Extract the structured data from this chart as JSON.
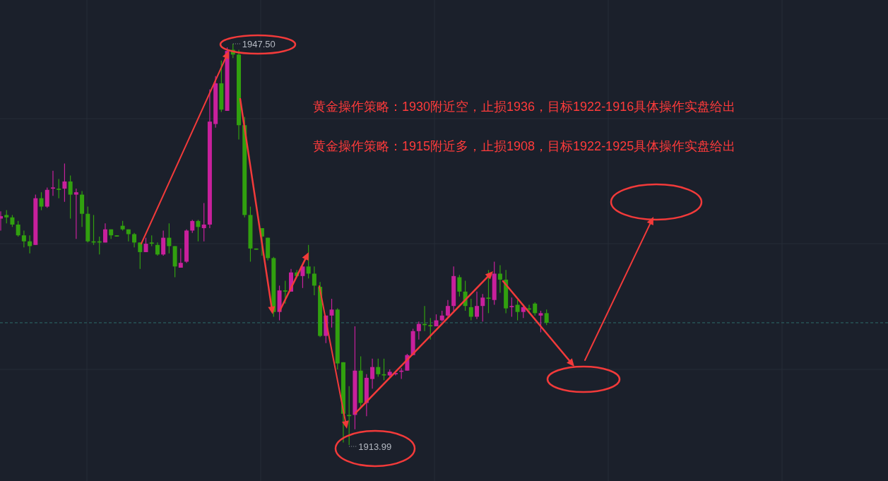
{
  "chart_data": {
    "type": "candlestick",
    "categories": [
      null,
      null,
      null,
      null,
      null,
      null,
      null,
      null,
      null,
      null,
      null,
      null,
      null,
      null,
      null,
      null,
      null,
      null,
      null,
      null,
      null,
      null,
      null,
      null,
      null,
      null,
      null,
      null,
      null,
      null,
      null,
      null,
      null,
      null,
      null,
      null,
      null,
      null,
      null,
      null,
      null,
      null,
      null,
      null,
      null,
      null,
      null,
      null,
      null,
      null,
      null,
      null,
      null,
      null,
      null,
      null,
      null,
      null,
      null,
      null,
      null,
      null,
      null,
      null,
      null,
      null,
      null,
      null,
      null,
      null,
      null,
      null,
      null,
      null,
      null,
      null,
      null,
      null,
      null,
      null,
      null,
      null,
      null,
      null,
      null,
      null,
      null,
      null,
      null,
      null,
      null,
      null,
      null,
      null,
      null
    ],
    "ohlc": [
      [
        1932.9,
        1933.5,
        1931.9,
        1933.1
      ],
      [
        1933.2,
        1933.6,
        1932.5,
        1933.0
      ],
      [
        1933.0,
        1933.2,
        1932.2,
        1932.4
      ],
      [
        1932.4,
        1932.7,
        1931.4,
        1931.5
      ],
      [
        1931.5,
        1931.9,
        1930.5,
        1931.0
      ],
      [
        1931.0,
        1931.5,
        1930.0,
        1930.6
      ],
      [
        1930.7,
        1934.9,
        1930.7,
        1934.6
      ],
      [
        1934.6,
        1935.1,
        1933.6,
        1933.9
      ],
      [
        1933.9,
        1935.5,
        1933.8,
        1935.3
      ],
      [
        1935.4,
        1936.9,
        1934.8,
        1935.5
      ],
      [
        1935.4,
        1936.2,
        1934.6,
        1935.3
      ],
      [
        1935.4,
        1937.5,
        1934.3,
        1936.0
      ],
      [
        1936.0,
        1936.5,
        1932.9,
        1934.9
      ],
      [
        1934.9,
        1935.4,
        1931.2,
        1935.1
      ],
      [
        1934.9,
        1935.2,
        1932.2,
        1933.3
      ],
      [
        1933.3,
        1933.9,
        1930.9,
        1931.0
      ],
      [
        1931.0,
        1933.2,
        1930.7,
        1930.9
      ],
      [
        1931.0,
        1931.4,
        1929.9,
        1930.9
      ],
      [
        1930.9,
        1932.5,
        1930.9,
        1932.0
      ],
      [
        1932.0,
        1932.0,
        1931.2,
        1931.5
      ],
      [
        1931.5,
        1931.5,
        1931.4,
        1931.4
      ],
      [
        1932.3,
        1932.7,
        1931.9,
        1932.0
      ],
      [
        1932.0,
        1932.0,
        1931.0,
        1931.6
      ],
      [
        1931.6,
        1931.7,
        1930.5,
        1930.9
      ],
      [
        1930.9,
        1930.9,
        1928.7,
        1930.1
      ],
      [
        1930.1,
        1931.3,
        1930.1,
        1930.8
      ],
      [
        1930.9,
        1931.5,
        1930.6,
        1930.8
      ],
      [
        1930.7,
        1930.9,
        1929.8,
        1929.9
      ],
      [
        1929.9,
        1931.9,
        1929.8,
        1931.3
      ],
      [
        1931.3,
        1932.5,
        1930.0,
        1930.6
      ],
      [
        1930.6,
        1930.6,
        1928.0,
        1928.9
      ],
      [
        1928.8,
        1930.4,
        1928.8,
        1929.2
      ],
      [
        1929.3,
        1932.0,
        1929.2,
        1931.9
      ],
      [
        1931.9,
        1932.8,
        1931.7,
        1932.7
      ],
      [
        1932.7,
        1932.8,
        1931.0,
        1932.2
      ],
      [
        1932.1,
        1934.2,
        1931.0,
        1932.4
      ],
      [
        1932.4,
        1943.7,
        1932.1,
        1941.0
      ],
      [
        1940.8,
        1944.8,
        1940.5,
        1944.2
      ],
      [
        1944.2,
        1946.1,
        1941.8,
        1942.0
      ],
      [
        1941.9,
        1947.2,
        1941.9,
        1946.9
      ],
      [
        1947.0,
        1947.5,
        1946.3,
        1946.6
      ],
      [
        1946.6,
        1947.0,
        1939.5,
        1940.7
      ],
      [
        1940.7,
        1941.4,
        1933.0,
        1933.2
      ],
      [
        1933.2,
        1933.9,
        1929.3,
        1930.4
      ],
      [
        1930.4,
        1930.4,
        1930.3,
        1930.3
      ],
      [
        1932.1,
        1932.1,
        1929.8,
        1931.4
      ],
      [
        1931.3,
        1931.3,
        1929.4,
        1929.6
      ],
      [
        1929.6,
        1929.7,
        1924.7,
        1925.1
      ],
      [
        1925.1,
        1927.3,
        1924.4,
        1926.9
      ],
      [
        1926.9,
        1927.7,
        1925.8,
        1926.8
      ],
      [
        1926.8,
        1928.7,
        1926.8,
        1928.4
      ],
      [
        1928.4,
        1928.6,
        1928.1,
        1928.1
      ],
      [
        1928.1,
        1928.9,
        1927.1,
        1928.9
      ],
      [
        1928.9,
        1930.7,
        1927.9,
        1928.3
      ],
      [
        1928.3,
        1928.9,
        1926.5,
        1927.3
      ],
      [
        1927.2,
        1927.6,
        1923.0,
        1923.1
      ],
      [
        1923.1,
        1924.8,
        1922.5,
        1924.8
      ],
      [
        1924.8,
        1926.2,
        1923.8,
        1925.3
      ],
      [
        1925.3,
        1925.4,
        1920.3,
        1920.8
      ],
      [
        1920.9,
        1920.9,
        1914.2,
        1916.6
      ],
      [
        1916.5,
        1918.9,
        1913.99,
        1916.4
      ],
      [
        1916.5,
        1923.9,
        1915.3,
        1920.2
      ],
      [
        1920.2,
        1921.4,
        1917.2,
        1917.5
      ],
      [
        1917.5,
        1919.9,
        1916.4,
        1919.6
      ],
      [
        1919.5,
        1921.2,
        1918.7,
        1920.5
      ],
      [
        1920.5,
        1921.2,
        1919.7,
        1919.9
      ],
      [
        1919.9,
        1921.2,
        1919.4,
        1919.8
      ],
      [
        1919.8,
        1920.3,
        1919.7,
        1920.1
      ],
      [
        1919.9,
        1920.0,
        1919.8,
        1920.0
      ],
      [
        1920.1,
        1920.4,
        1919.5,
        1920.2
      ],
      [
        1920.2,
        1921.6,
        1920.2,
        1921.5
      ],
      [
        1921.5,
        1923.7,
        1921.5,
        1923.5
      ],
      [
        1923.5,
        1924.3,
        1922.8,
        1924.1
      ],
      [
        1924.1,
        1925.6,
        1923.5,
        1924.0
      ],
      [
        1924.0,
        1924.6,
        1922.8,
        1923.9
      ],
      [
        1923.9,
        1924.9,
        1923.9,
        1924.4
      ],
      [
        1924.4,
        1925.2,
        1924.3,
        1924.8
      ],
      [
        1924.8,
        1926.1,
        1924.7,
        1925.6
      ],
      [
        1925.6,
        1928.9,
        1925.2,
        1928.1
      ],
      [
        1928.0,
        1928.2,
        1926.4,
        1926.8
      ],
      [
        1926.8,
        1927.7,
        1925.2,
        1925.6
      ],
      [
        1925.5,
        1926.2,
        1924.4,
        1924.7
      ],
      [
        1924.7,
        1926.8,
        1924.5,
        1925.6
      ],
      [
        1925.6,
        1926.6,
        1924.3,
        1926.3
      ],
      [
        1926.3,
        1928.6,
        1925.0,
        1926.2
      ],
      [
        1926.1,
        1929.3,
        1925.7,
        1928.3
      ],
      [
        1928.3,
        1929.0,
        1926.7,
        1927.8
      ],
      [
        1927.8,
        1928.6,
        1925.0,
        1925.4
      ],
      [
        1925.5,
        1926.3,
        1924.7,
        1925.6
      ],
      [
        1925.7,
        1926.1,
        1924.4,
        1925.1
      ],
      [
        1925.1,
        1925.7,
        1924.6,
        1925.5
      ],
      [
        1925.4,
        1925.7,
        1925.0,
        1925.3
      ],
      [
        1925.8,
        1925.9,
        1924.8,
        1925.0
      ],
      [
        1924.8,
        1925.2,
        1923.4,
        1925.0
      ],
      [
        1925.0,
        1925.3,
        1924.0,
        1924.2
      ]
    ],
    "colors": [
      "#c8209c",
      "#31a00f",
      "#31a00f",
      "#31a00f",
      "#31a00f",
      "#31a00f",
      "#c8209c",
      "#31a00f",
      "#c8209c",
      "#c8209c",
      "#31a00f",
      "#c8209c",
      "#31a00f",
      "#c8209c",
      "#31a00f",
      "#31a00f",
      "#31a00f",
      "#31a00f",
      "#c8209c",
      "#31a00f",
      "#31a00f",
      "#31a00f",
      "#31a00f",
      "#31a00f",
      "#31a00f",
      "#c8209c",
      "#31a00f",
      "#31a00f",
      "#c8209c",
      "#31a00f",
      "#31a00f",
      "#c8209c",
      "#c8209c",
      "#c8209c",
      "#31a00f",
      "#c8209c",
      "#c8209c",
      "#c8209c",
      "#31a00f",
      "#c8209c",
      "#31a00f",
      "#31a00f",
      "#31a00f",
      "#31a00f",
      "#31a00f",
      "#31a00f",
      "#31a00f",
      "#31a00f",
      "#c8209c",
      "#31a00f",
      "#c8209c",
      "#31a00f",
      "#c8209c",
      "#31a00f",
      "#31a00f",
      "#31a00f",
      "#c8209c",
      "#c8209c",
      "#31a00f",
      "#31a00f",
      "#31a00f",
      "#c8209c",
      "#31a00f",
      "#c8209c",
      "#c8209c",
      "#31a00f",
      "#31a00f",
      "#c8209c",
      "#c8209c",
      "#c8209c",
      "#c8209c",
      "#c8209c",
      "#c8209c",
      "#31a00f",
      "#31a00f",
      "#c8209c",
      "#c8209c",
      "#c8209c",
      "#c8209c",
      "#31a00f",
      "#31a00f",
      "#31a00f",
      "#c8209c",
      "#c8209c",
      "#31a00f",
      "#c8209c",
      "#31a00f",
      "#31a00f",
      "#c8209c",
      "#31a00f",
      "#c8209c",
      "#31a00f",
      "#31a00f",
      "#c8209c",
      "#31a00f"
    ],
    "ref_lines": [
      {
        "axis": "y",
        "value": 1924.2,
        "color": "#2f6b6b",
        "line_style": "dashed"
      }
    ],
    "grid": true,
    "annotations": [
      "1947.50",
      "1913.99",
      "黄金操作策略：1930附近空，止损1936，目标1922-1916具体操作实盘给出",
      "黄金操作策略：1915附近多，止损1908，目标1922-1925具体操作实盘给出"
    ]
  }
}
